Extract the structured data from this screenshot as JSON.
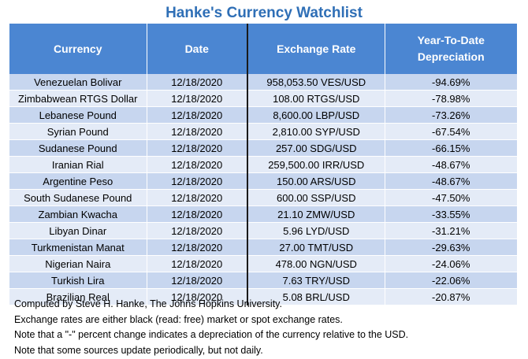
{
  "title": "Hanke's Currency Watchlist",
  "headers": [
    "Currency",
    "Date",
    "Exchange Rate",
    "Year-To-Date Depreciation"
  ],
  "rows": [
    [
      "Venezuelan Bolivar",
      "12/18/2020",
      "958,053.50 VES/USD",
      "-94.69%"
    ],
    [
      "Zimbabwean RTGS Dollar",
      "12/18/2020",
      "108.00 RTGS/USD",
      "-78.98%"
    ],
    [
      "Lebanese Pound",
      "12/18/2020",
      "8,600.00 LBP/USD",
      "-73.26%"
    ],
    [
      "Syrian Pound",
      "12/18/2020",
      "2,810.00 SYP/USD",
      "-67.54%"
    ],
    [
      "Sudanese Pound",
      "12/18/2020",
      "257.00 SDG/USD",
      "-66.15%"
    ],
    [
      "Iranian Rial",
      "12/18/2020",
      "259,500.00 IRR/USD",
      "-48.67%"
    ],
    [
      "Argentine Peso",
      "12/18/2020",
      "150.00 ARS/USD",
      "-48.67%"
    ],
    [
      "South Sudanese Pound",
      "12/18/2020",
      "600.00 SSP/USD",
      "-47.50%"
    ],
    [
      "Zambian Kwacha",
      "12/18/2020",
      "21.10 ZMW/USD",
      "-33.55%"
    ],
    [
      "Libyan Dinar",
      "12/18/2020",
      "5.96 LYD/USD",
      "-31.21%"
    ],
    [
      "Turkmenistan Manat",
      "12/18/2020",
      "27.00 TMT/USD",
      "-29.63%"
    ],
    [
      "Nigerian Naira",
      "12/18/2020",
      "478.00 NGN/USD",
      "-24.06%"
    ],
    [
      "Turkish Lira",
      "12/18/2020",
      "7.63 TRY/USD",
      "-22.06%"
    ],
    [
      "Brazilian Real",
      "12/18/2020",
      "5.08 BRL/USD",
      "-20.87%"
    ]
  ],
  "notes": [
    "Computed by Steve H. Hanke, The Johns Hopkins University.",
    "Exchange rates are either black (read: free) market or spot exchange rates.",
    "Note that a \"-\" percent change indicates a depreciation of the currency relative to the USD.",
    "Note that some sources update periodically, but not daily."
  ],
  "colors": {
    "title": "#2f6fb6",
    "header_bg": "#4b86d2",
    "row_odd": "#c7d6ef",
    "row_even": "#e4ebf7",
    "separator": "#1a1a1a"
  }
}
